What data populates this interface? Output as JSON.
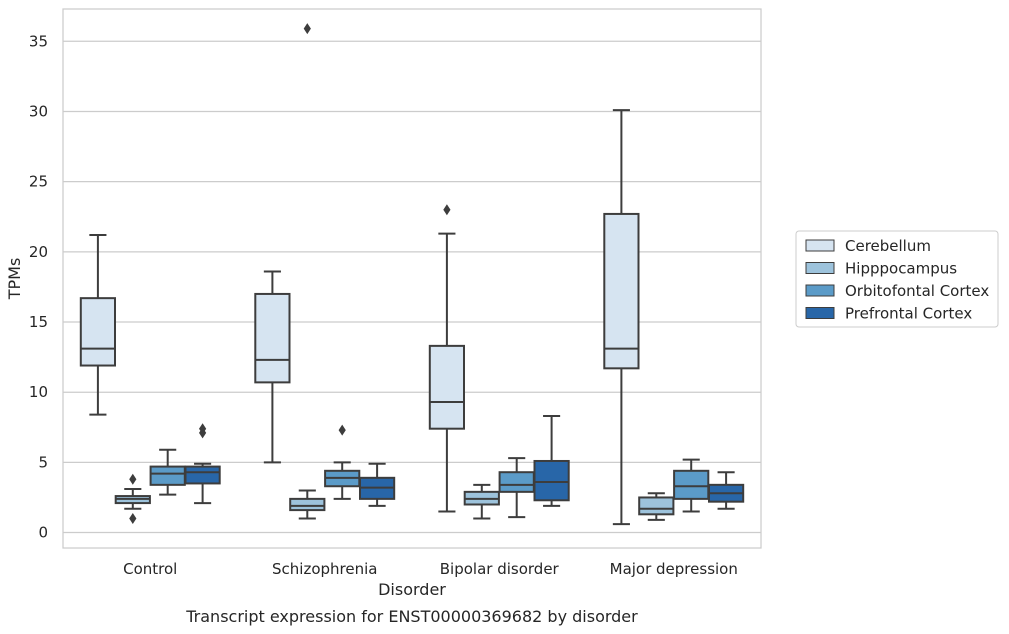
{
  "caption": "Transcript expression for ENST00000369682 by disorder",
  "chart_data": {
    "type": "box",
    "title": "",
    "xlabel": "Disorder",
    "ylabel": "TPMs",
    "categories": [
      "Control",
      "Schizophrenia",
      "Bipolar disorder",
      "Major depression"
    ],
    "ylim": [
      -1.1,
      37.3
    ],
    "yticks": [
      0,
      5,
      10,
      15,
      20,
      25,
      30,
      35
    ],
    "grid": "horizontal",
    "legend_position": "right",
    "series": [
      {
        "name": "Cerebellum",
        "color": "#d6e4f1",
        "boxes": [
          {
            "whisker_low": 8.4,
            "q1": 11.9,
            "median": 13.1,
            "q3": 16.7,
            "whisker_high": 21.2,
            "outliers": []
          },
          {
            "whisker_low": 5.0,
            "q1": 10.7,
            "median": 12.3,
            "q3": 17.0,
            "whisker_high": 18.6,
            "outliers": []
          },
          {
            "whisker_low": 1.5,
            "q1": 7.4,
            "median": 9.3,
            "q3": 13.3,
            "whisker_high": 21.3,
            "outliers": [
              23.0
            ]
          },
          {
            "whisker_low": 0.6,
            "q1": 11.7,
            "median": 13.1,
            "q3": 22.7,
            "whisker_high": 30.1,
            "outliers": []
          }
        ]
      },
      {
        "name": "Hipppocampus",
        "color": "#9dc3dc",
        "boxes": [
          {
            "whisker_low": 1.7,
            "q1": 2.1,
            "median": 2.4,
            "q3": 2.6,
            "whisker_high": 3.1,
            "outliers": [
              3.8,
              1.0
            ]
          },
          {
            "whisker_low": 1.0,
            "q1": 1.6,
            "median": 1.9,
            "q3": 2.4,
            "whisker_high": 3.0,
            "outliers": [
              35.9
            ]
          },
          {
            "whisker_low": 1.0,
            "q1": 2.0,
            "median": 2.4,
            "q3": 2.9,
            "whisker_high": 3.4,
            "outliers": []
          },
          {
            "whisker_low": 0.9,
            "q1": 1.3,
            "median": 1.7,
            "q3": 2.5,
            "whisker_high": 2.8,
            "outliers": []
          }
        ]
      },
      {
        "name": "Orbitofontal Cortex",
        "color": "#5b9bc8",
        "boxes": [
          {
            "whisker_low": 2.7,
            "q1": 3.4,
            "median": 4.2,
            "q3": 4.7,
            "whisker_high": 5.9,
            "outliers": []
          },
          {
            "whisker_low": 2.4,
            "q1": 3.3,
            "median": 3.9,
            "q3": 4.4,
            "whisker_high": 5.0,
            "outliers": [
              7.3
            ]
          },
          {
            "whisker_low": 1.1,
            "q1": 2.9,
            "median": 3.4,
            "q3": 4.3,
            "whisker_high": 5.3,
            "outliers": []
          },
          {
            "whisker_low": 1.5,
            "q1": 2.4,
            "median": 3.3,
            "q3": 4.4,
            "whisker_high": 5.2,
            "outliers": []
          }
        ]
      },
      {
        "name": "Prefrontal Cortex",
        "color": "#2866a8",
        "boxes": [
          {
            "whisker_low": 2.1,
            "q1": 3.5,
            "median": 4.3,
            "q3": 4.7,
            "whisker_high": 4.9,
            "outliers": [
              7.4,
              7.1
            ]
          },
          {
            "whisker_low": 1.9,
            "q1": 2.4,
            "median": 3.2,
            "q3": 3.9,
            "whisker_high": 4.9,
            "outliers": []
          },
          {
            "whisker_low": 1.9,
            "q1": 2.3,
            "median": 3.6,
            "q3": 5.1,
            "whisker_high": 8.3,
            "outliers": []
          },
          {
            "whisker_low": 1.7,
            "q1": 2.2,
            "median": 2.8,
            "q3": 3.4,
            "whisker_high": 4.3,
            "outliers": []
          }
        ]
      }
    ]
  }
}
